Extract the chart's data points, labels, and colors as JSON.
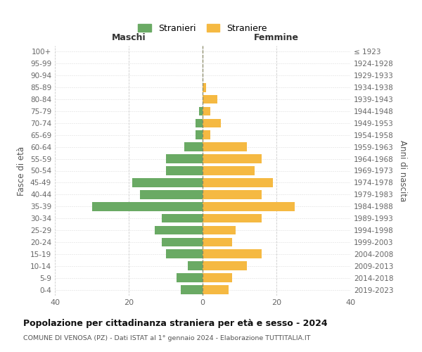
{
  "age_groups": [
    "0-4",
    "5-9",
    "10-14",
    "15-19",
    "20-24",
    "25-29",
    "30-34",
    "35-39",
    "40-44",
    "45-49",
    "50-54",
    "55-59",
    "60-64",
    "65-69",
    "70-74",
    "75-79",
    "80-84",
    "85-89",
    "90-94",
    "95-99",
    "100+"
  ],
  "birth_years": [
    "2019-2023",
    "2014-2018",
    "2009-2013",
    "2004-2008",
    "1999-2003",
    "1994-1998",
    "1989-1993",
    "1984-1988",
    "1979-1983",
    "1974-1978",
    "1969-1973",
    "1964-1968",
    "1959-1963",
    "1954-1958",
    "1949-1953",
    "1944-1948",
    "1939-1943",
    "1934-1938",
    "1929-1933",
    "1924-1928",
    "≤ 1923"
  ],
  "maschi": [
    6,
    7,
    4,
    10,
    11,
    13,
    11,
    30,
    17,
    19,
    10,
    10,
    5,
    2,
    2,
    1,
    0,
    0,
    0,
    0,
    0
  ],
  "femmine": [
    7,
    8,
    12,
    16,
    8,
    9,
    16,
    25,
    16,
    19,
    14,
    16,
    12,
    2,
    5,
    2,
    4,
    1,
    0,
    0,
    0
  ],
  "color_maschi": "#6aaa64",
  "color_femmine": "#f5b942",
  "title": "Popolazione per cittadinanza straniera per età e sesso - 2024",
  "subtitle": "COMUNE DI VENOSA (PZ) - Dati ISTAT al 1° gennaio 2024 - Elaborazione TUTTITALIA.IT",
  "xlabel_left": "Maschi",
  "xlabel_right": "Femmine",
  "ylabel_left": "Fasce di età",
  "ylabel_right": "Anni di nascita",
  "legend_maschi": "Stranieri",
  "legend_femmine": "Straniere",
  "xlim": 40,
  "background_color": "#ffffff"
}
